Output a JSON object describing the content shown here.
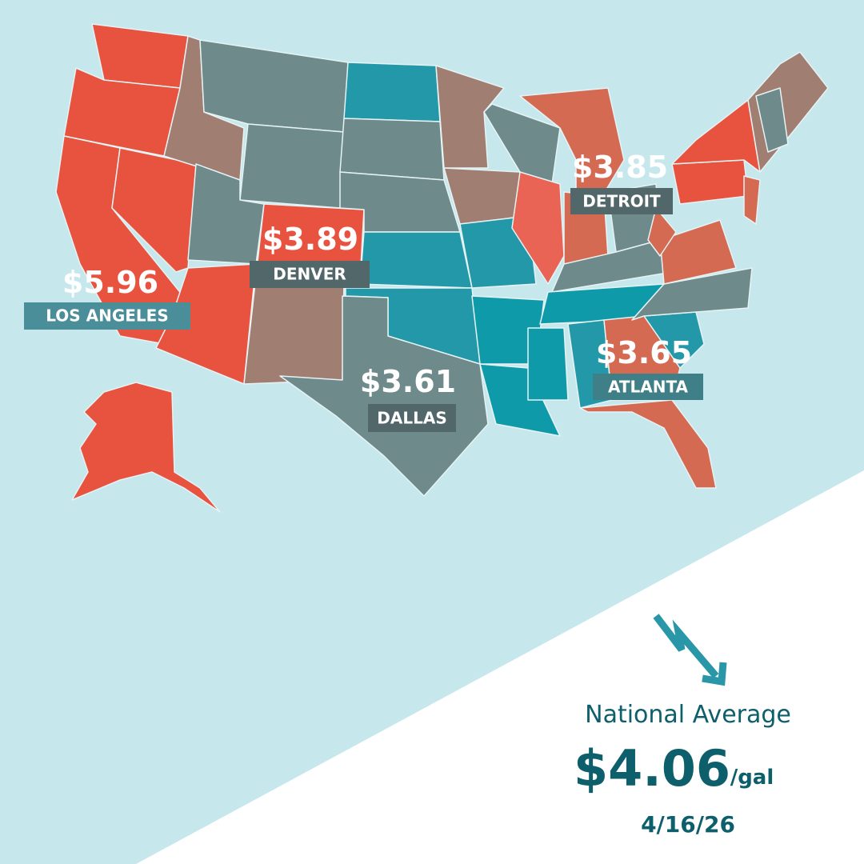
{
  "cities": [
    {
      "price": "$5.96",
      "name": "LOS ANGELES"
    },
    {
      "price": "$3.89",
      "name": "DENVER"
    },
    {
      "price": "$3.85",
      "name": "DETROIT"
    },
    {
      "price": "$3.61",
      "name": "DALLAS"
    },
    {
      "price": "$3.65",
      "name": "ATLANTA"
    }
  ],
  "national": {
    "label": "National Average",
    "price": "$4.06",
    "unit": "/gal",
    "date": "4/16/26"
  }
}
